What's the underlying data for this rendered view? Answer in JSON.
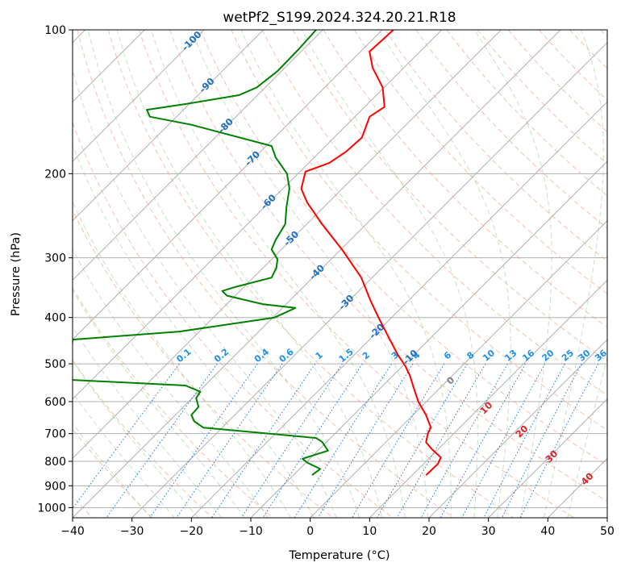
{
  "chart_data": {
    "type": "line",
    "title": "wetPf2_S199.2024.324.20.21.R18",
    "xlabel": "Temperature (°C)",
    "ylabel": "Pressure (hPa)",
    "xlim": [
      -40,
      50
    ],
    "ylim": [
      1050,
      100
    ],
    "y_scale": "log",
    "grid": true,
    "x_ticks": [
      -40,
      -30,
      -20,
      -10,
      0,
      10,
      20,
      30,
      40,
      50
    ],
    "x_tick_labels": [
      "−40",
      "−30",
      "−20",
      "−10",
      "0",
      "10",
      "20",
      "30",
      "40",
      "50"
    ],
    "y_ticks": [
      100,
      200,
      300,
      400,
      500,
      600,
      700,
      800,
      900,
      1000
    ],
    "y_tick_labels": [
      "100",
      "200",
      "300",
      "400",
      "500",
      "600",
      "700",
      "800",
      "900",
      "1000"
    ],
    "series": [
      {
        "color": "#ff0000",
        "points": [
          [
            19.5,
            855
          ],
          [
            21.5,
            810
          ],
          [
            22.0,
            785
          ],
          [
            20.5,
            755
          ],
          [
            19.5,
            730
          ],
          [
            19.8,
            700
          ],
          [
            20.3,
            680
          ],
          [
            19.5,
            640
          ],
          [
            18.2,
            600
          ],
          [
            17.4,
            560
          ],
          [
            16.8,
            530
          ],
          [
            16.0,
            505
          ],
          [
            14.8,
            480
          ],
          [
            13.2,
            440
          ],
          [
            11.5,
            400
          ],
          [
            10.2,
            370
          ],
          [
            8.6,
            330
          ],
          [
            5.5,
            290
          ],
          [
            2.0,
            255
          ],
          [
            -0.5,
            230
          ],
          [
            -1.5,
            215
          ],
          [
            -0.8,
            198
          ],
          [
            3.2,
            190
          ],
          [
            6.0,
            180
          ],
          [
            8.7,
            168
          ],
          [
            10.0,
            152
          ],
          [
            12.5,
            145
          ],
          [
            12.2,
            132
          ],
          [
            10.5,
            120
          ],
          [
            10.0,
            111
          ],
          [
            12.5,
            104
          ],
          [
            14.0,
            100
          ]
        ]
      },
      {
        "color": "#008000",
        "points": [
          [
            0.3,
            855
          ],
          [
            1.7,
            830
          ],
          [
            -0.5,
            805
          ],
          [
            -1.3,
            790
          ],
          [
            3.0,
            760
          ],
          [
            2.0,
            728
          ],
          [
            1.0,
            715
          ],
          [
            -18.0,
            680
          ],
          [
            -19.5,
            660
          ],
          [
            -20.0,
            640
          ],
          [
            -18.8,
            615
          ],
          [
            -19.2,
            590
          ],
          [
            -18.5,
            572
          ],
          [
            -21.0,
            555
          ],
          [
            -40.5,
            540
          ],
          [
            -40.0,
            445
          ],
          [
            -22.0,
            428
          ],
          [
            -6.0,
            400
          ],
          [
            -2.5,
            382
          ],
          [
            -8.0,
            375
          ],
          [
            -14.0,
            360
          ],
          [
            -14.8,
            352
          ],
          [
            -12.5,
            345
          ],
          [
            -6.5,
            330
          ],
          [
            -5.7,
            315
          ],
          [
            -5.5,
            302
          ],
          [
            -6.5,
            288
          ],
          [
            -5.8,
            275
          ],
          [
            -4.2,
            255
          ],
          [
            -4.0,
            235
          ],
          [
            -3.5,
            215
          ],
          [
            -3.9,
            200
          ],
          [
            -5.8,
            185
          ],
          [
            -6.5,
            175
          ],
          [
            -20.0,
            158
          ],
          [
            -27.0,
            152
          ],
          [
            -27.5,
            147
          ],
          [
            -21.0,
            143
          ],
          [
            -12.0,
            137
          ],
          [
            -9.0,
            132
          ],
          [
            -5.5,
            122
          ],
          [
            -2.0,
            110
          ],
          [
            1.0,
            100
          ]
        ]
      }
    ],
    "annotations": {
      "dry_adiabat_labels": [
        "-100",
        "-90",
        "-80",
        "-70",
        "-60",
        "-50",
        "-40",
        "-30",
        "-20",
        "-10"
      ],
      "mixing_ratio_labels": [
        "0.1",
        "0.2",
        "0.4",
        "0.6",
        "1",
        "1.5",
        "2",
        "3",
        "4",
        "6",
        "8",
        "10",
        "13",
        "16",
        "20",
        "25",
        "30",
        "36"
      ],
      "moist_adiabat_labels": [
        "0",
        "10",
        "20",
        "30",
        "40"
      ]
    }
  }
}
